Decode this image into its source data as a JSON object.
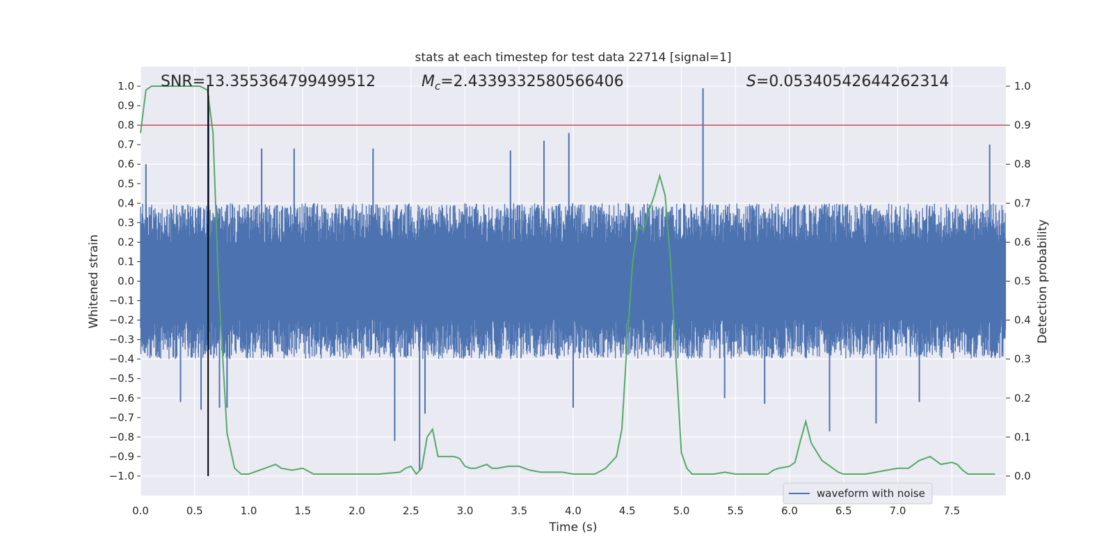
{
  "chart_data": {
    "type": "line",
    "title": "stats at each timestep for test data 22714 [signal=1]",
    "xlabel": "Time (s)",
    "ylabel_left": "Whitened strain",
    "ylabel_right": "Detection probability",
    "xlim": [
      0.0,
      8.0
    ],
    "ylim_left": [
      -1.1,
      1.1
    ],
    "ylim_right": [
      -0.05,
      1.05
    ],
    "x_ticks": [
      "0.0",
      "0.5",
      "1.0",
      "1.5",
      "2.0",
      "2.5",
      "3.0",
      "3.5",
      "4.0",
      "4.5",
      "5.0",
      "5.5",
      "6.0",
      "6.5",
      "7.0",
      "7.5"
    ],
    "y_ticks_left": [
      "1.0",
      "0.9",
      "0.8",
      "0.7",
      "0.6",
      "0.5",
      "0.4",
      "0.3",
      "0.2",
      "0.1",
      "0.0",
      "-0.1",
      "-0.2",
      "-0.3",
      "-0.4",
      "-0.5",
      "-0.6",
      "-0.7",
      "-0.8",
      "-0.9",
      "-1.0"
    ],
    "y_ticks_right": [
      "1.0",
      "0.9",
      "0.8",
      "0.7",
      "0.6",
      "0.5",
      "0.4",
      "0.3",
      "0.2",
      "0.1",
      "0.0"
    ],
    "grid": true,
    "legend": {
      "position": "lower-right",
      "entries": [
        "waveform with noise"
      ]
    },
    "annotations": {
      "snr": "SNR=13.355364799499512",
      "mc_symbol": "M",
      "mc_sub": "c",
      "mc_value": "=2.4339332580566406",
      "s_symbol": "S",
      "s_value": "=0.05340542644262314"
    },
    "threshold_line": {
      "axis": "right",
      "y": 0.9,
      "color": "#c44e52"
    },
    "marker_line": {
      "axis": "left",
      "x": 0.625,
      "y_range": [
        -1.0,
        1.0
      ],
      "color": "#000000"
    },
    "waveform": {
      "name": "waveform with noise",
      "color": "#4c72b0",
      "envelope_typical": 0.4,
      "spikes": [
        {
          "x": 0.05,
          "y": 0.6
        },
        {
          "x": 0.37,
          "y": -0.62
        },
        {
          "x": 0.56,
          "y": -0.66
        },
        {
          "x": 0.63,
          "y": 0.95
        },
        {
          "x": 0.73,
          "y": -0.65
        },
        {
          "x": 0.8,
          "y": -0.65
        },
        {
          "x": 1.12,
          "y": 0.68
        },
        {
          "x": 1.42,
          "y": 0.68
        },
        {
          "x": 2.15,
          "y": 0.68
        },
        {
          "x": 2.35,
          "y": -0.82
        },
        {
          "x": 2.58,
          "y": -0.97
        },
        {
          "x": 2.63,
          "y": -0.68
        },
        {
          "x": 3.42,
          "y": 0.67
        },
        {
          "x": 3.73,
          "y": 0.72
        },
        {
          "x": 3.96,
          "y": 0.76
        },
        {
          "x": 4.0,
          "y": -0.65
        },
        {
          "x": 5.2,
          "y": 0.99
        },
        {
          "x": 5.4,
          "y": -0.6
        },
        {
          "x": 5.77,
          "y": -0.63
        },
        {
          "x": 6.37,
          "y": -0.77
        },
        {
          "x": 6.8,
          "y": -0.73
        },
        {
          "x": 7.2,
          "y": -0.62
        },
        {
          "x": 7.85,
          "y": 0.7
        }
      ]
    },
    "probability": {
      "color": "#55a868",
      "x": [
        0.0,
        0.05,
        0.1,
        0.2,
        0.3,
        0.4,
        0.5,
        0.55,
        0.62,
        0.67,
        0.72,
        0.8,
        0.87,
        0.93,
        1.0,
        1.05,
        1.1,
        1.2,
        1.25,
        1.3,
        1.4,
        1.5,
        1.6,
        1.7,
        1.8,
        2.0,
        2.2,
        2.4,
        2.45,
        2.5,
        2.55,
        2.6,
        2.65,
        2.7,
        2.75,
        2.8,
        2.9,
        2.95,
        3.0,
        3.05,
        3.1,
        3.15,
        3.2,
        3.25,
        3.3,
        3.4,
        3.5,
        3.6,
        3.7,
        3.8,
        3.9,
        4.0,
        4.1,
        4.2,
        4.3,
        4.4,
        4.45,
        4.5,
        4.55,
        4.6,
        4.65,
        4.7,
        4.75,
        4.8,
        4.85,
        4.9,
        4.95,
        5.0,
        5.05,
        5.1,
        5.2,
        5.3,
        5.4,
        5.5,
        5.6,
        5.7,
        5.8,
        5.85,
        5.9,
        6.0,
        6.05,
        6.1,
        6.15,
        6.2,
        6.3,
        6.4,
        6.45,
        6.5,
        6.6,
        6.7,
        6.8,
        6.9,
        7.0,
        7.1,
        7.2,
        7.25,
        7.3,
        7.35,
        7.4,
        7.5,
        7.55,
        7.6,
        7.65,
        7.7,
        7.8,
        7.9
      ],
      "y": [
        0.88,
        0.99,
        1.0,
        1.0,
        1.0,
        1.0,
        1.0,
        1.0,
        0.99,
        0.88,
        0.5,
        0.11,
        0.02,
        0.005,
        0.005,
        0.01,
        0.015,
        0.025,
        0.03,
        0.02,
        0.015,
        0.02,
        0.005,
        0.005,
        0.005,
        0.005,
        0.005,
        0.01,
        0.02,
        0.025,
        0.005,
        0.02,
        0.1,
        0.12,
        0.05,
        0.05,
        0.05,
        0.045,
        0.025,
        0.02,
        0.02,
        0.025,
        0.03,
        0.02,
        0.02,
        0.025,
        0.025,
        0.015,
        0.01,
        0.01,
        0.01,
        0.005,
        0.005,
        0.005,
        0.02,
        0.05,
        0.12,
        0.35,
        0.55,
        0.64,
        0.63,
        0.68,
        0.72,
        0.77,
        0.72,
        0.55,
        0.3,
        0.06,
        0.02,
        0.005,
        0.005,
        0.005,
        0.01,
        0.005,
        0.005,
        0.005,
        0.005,
        0.015,
        0.02,
        0.025,
        0.035,
        0.09,
        0.14,
        0.085,
        0.04,
        0.02,
        0.01,
        0.005,
        0.005,
        0.005,
        0.01,
        0.015,
        0.02,
        0.02,
        0.04,
        0.045,
        0.05,
        0.04,
        0.03,
        0.035,
        0.03,
        0.015,
        0.005,
        0.005,
        0.005,
        0.005
      ]
    }
  }
}
